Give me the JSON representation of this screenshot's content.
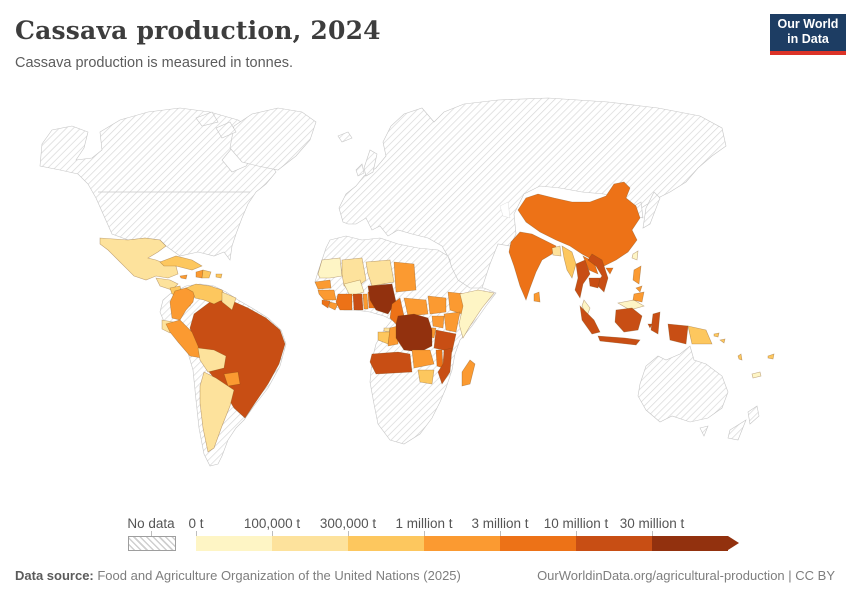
{
  "header": {
    "title": "Cassava production, 2024",
    "subtitle": "Cassava production is measured in tonnes."
  },
  "logo": {
    "line1": "Our World",
    "line2": "in Data",
    "bg": "#1d3d63",
    "accent": "#dc3327"
  },
  "legend": {
    "no_data_label": "No data",
    "tick_labels": [
      "0 t",
      "100,000 t",
      "300,000 t",
      "1 million t",
      "3 million t",
      "10 million t",
      "30 million t"
    ],
    "colors": [
      "#fef5c5",
      "#fde29c",
      "#fdc75e",
      "#fb9a31",
      "#ed7217",
      "#c84e14",
      "#92310e"
    ]
  },
  "footer": {
    "source_label": "Data source:",
    "source_text": " Food and Agriculture Organization of the United Nations (2025)",
    "license_text": "OurWorldinData.org/agricultural-production | CC BY"
  },
  "map": {
    "ocean": "#ffffff",
    "country_border": "rgba(120,70,20,0.45)",
    "no_data_border": "#c6c6c6",
    "countries": {
      "north-america": -1,
      "greenland": -1,
      "baffin": -1,
      "ellesmere": -1,
      "iceland": -1,
      "eurasia": -1,
      "uk": -1,
      "ireland": -1,
      "japan": -1,
      "south-korea": -1,
      "south-america": -1,
      "africa": -1,
      "australia": -1,
      "tasmania": -1,
      "new-zealand-north": -1,
      "new-zealand-south": -1,
      "mexico": 1,
      "guatemala-honduras": 1,
      "nicaragua": 2,
      "costa-rica-panama": 1,
      "cuba": 2,
      "jamaica": 3,
      "haiti": 3,
      "dominican-republic": 2,
      "puerto-rico": 2,
      "colombia": 3,
      "venezuela": 2,
      "guyana-suriname": 1,
      "ecuador": 1,
      "peru": 3,
      "bolivia": 1,
      "brazil": 5,
      "paraguay": 3,
      "argentina": 1,
      "mauritania": 0,
      "mali": 1,
      "niger": 1,
      "chad": 3,
      "senegal": 3,
      "guinea": 3,
      "sierra-leone": 4,
      "liberia": 3,
      "ivory-coast": 4,
      "ghana": 5,
      "togo": 3,
      "benin": 4,
      "burkina-faso": 0,
      "nigeria": 6,
      "cameroon": 4,
      "equatorial-guinea": 1,
      "gabon": 2,
      "congo": 3,
      "central-african-republic": 3,
      "south-sudan": 3,
      "ethiopia": 3,
      "somalia": 0,
      "kenya": 3,
      "uganda": 3,
      "rwanda-burundi": 3,
      "drc": 6,
      "angola": 5,
      "zambia": 3,
      "tanzania": 5,
      "malawi": 4,
      "mozambique": 5,
      "zimbabwe": 2,
      "madagascar": 3,
      "china": 4,
      "hainan": 4,
      "india": 4,
      "bangladesh": 1,
      "sri-lanka": 3,
      "myanmar": 2,
      "thailand": 5,
      "laos": 4,
      "cambodia": 5,
      "vietnam": 5,
      "malaysia": 0,
      "malaysia-borneo": 0,
      "indonesia-sumatra": 5,
      "indonesia-java": 5,
      "indonesia-kalimantan": 5,
      "indonesia-sulawesi": 5,
      "indonesia-moluccas": 5,
      "indonesia-west-papua": 5,
      "philippines-luzon": 3,
      "philippines-visayas": 3,
      "philippines-mindanao": 3,
      "taiwan": 0,
      "papua-new-guinea": 2,
      "solomon-islands": 2,
      "vanuatu": 2,
      "fiji": 2,
      "new-caledonia": 0
    }
  },
  "chart_data": {
    "type": "heatmap",
    "subtype": "choropleth-world-map",
    "title": "Cassava production, 2024",
    "subtitle": "Cassava production is measured in tonnes.",
    "unit": "tonnes",
    "year": 2024,
    "legend_position": "bottom",
    "bin_edges": [
      "0 t",
      "100,000 t",
      "300,000 t",
      "1 million t",
      "3 million t",
      "10 million t",
      "30 million t"
    ],
    "bin_ranges": [
      "0-100,000 t",
      "100,000-300,000 t",
      "300,000-1 million t",
      "1-3 million t",
      "3-10 million t",
      "10-30 million t",
      "over 30 million t"
    ],
    "bin_colors": [
      "#fef5c5",
      "#fde29c",
      "#fdc75e",
      "#fb9a31",
      "#ed7217",
      "#c84e14",
      "#92310e"
    ],
    "no_data_regions": [
      "Canada",
      "United States",
      "Greenland",
      "Iceland",
      "Europe",
      "Russia",
      "Middle East",
      "Central Asia",
      "Mongolia",
      "Japan",
      "South Korea",
      "North Africa",
      "Sudan",
      "Southern Africa",
      "Chile",
      "Uruguay",
      "Australia",
      "New Zealand"
    ],
    "countries_by_bin": {
      "0-100,000 t": [
        "Mauritania",
        "Burkina Faso",
        "Somalia",
        "Taiwan",
        "Malaysia",
        "New Caledonia"
      ],
      "100,000-300,000 t": [
        "Mexico",
        "Guatemala",
        "Honduras",
        "Costa Rica",
        "Panama",
        "Guyana",
        "Suriname",
        "Ecuador",
        "Bolivia",
        "Argentina",
        "Mali",
        "Niger",
        "Equatorial Guinea",
        "Bangladesh"
      ],
      "300,000-1 million t": [
        "Nicaragua",
        "Cuba",
        "Dominican Republic",
        "Puerto Rico",
        "Venezuela",
        "Gabon",
        "Zimbabwe",
        "Myanmar",
        "Papua New Guinea",
        "Solomon Islands",
        "Vanuatu",
        "Fiji"
      ],
      "1-3 million t": [
        "Jamaica",
        "Haiti",
        "Colombia",
        "Peru",
        "Paraguay",
        "Senegal",
        "Guinea",
        "Liberia",
        "Togo",
        "Chad",
        "Central African Republic",
        "South Sudan",
        "Ethiopia",
        "Kenya",
        "Uganda",
        "Rwanda",
        "Burundi",
        "Congo",
        "Zambia",
        "Madagascar",
        "Sri Lanka",
        "Philippines"
      ],
      "3-10 million t": [
        "Sierra Leone",
        "Cote d'Ivoire",
        "Benin",
        "Cameroon",
        "Malawi",
        "China",
        "India",
        "Laos"
      ],
      "10-30 million t": [
        "Brazil",
        "Ghana",
        "Angola",
        "Tanzania",
        "Mozambique",
        "Thailand",
        "Cambodia",
        "Vietnam",
        "Indonesia"
      ],
      "over 30 million t": [
        "Nigeria",
        "Democratic Republic of Congo"
      ]
    }
  }
}
